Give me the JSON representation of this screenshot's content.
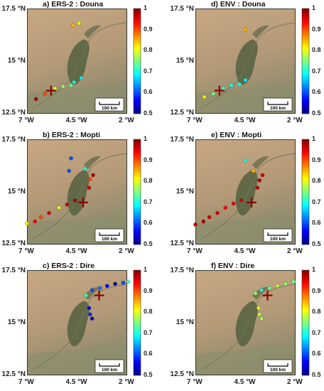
{
  "colorbar": {
    "ticks": [
      "1",
      "0.9",
      "0.8",
      "0.7",
      "0.6",
      "0.5"
    ],
    "values": [
      1,
      0.9,
      0.8,
      0.7,
      0.6,
      0.5
    ],
    "min": 0.5,
    "max": 1,
    "colors": [
      "#00007f",
      "#0000ff",
      "#007fff",
      "#00ffff",
      "#7fff7f",
      "#ffff00",
      "#ff7f00",
      "#ff0000",
      "#7f0000"
    ]
  },
  "axes": {
    "lat_labels": [
      "17.5 °N",
      "15 °N",
      "12.5 °N"
    ],
    "lon_labels": [
      "7 °W",
      "4.5 °W",
      "2 °W"
    ]
  },
  "scalebar": {
    "label": "100 km"
  },
  "colors": {
    "station_cross": "#8b0000",
    "outline": "#333333"
  },
  "chart_data": [
    {
      "type": "scatter",
      "title": "a) ERS-2 : Douna",
      "station": [
        -5.8,
        13.6
      ],
      "points": [
        [
          -6.55,
          13.2,
          0.98
        ],
        [
          -6.1,
          13.45,
          0.9
        ],
        [
          -5.6,
          13.7,
          0.8
        ],
        [
          -5.2,
          13.8,
          0.76
        ],
        [
          -4.8,
          13.85,
          0.74
        ],
        [
          -4.65,
          14.0,
          0.7
        ],
        [
          -4.3,
          14.2,
          0.68
        ],
        [
          -4.7,
          16.7,
          0.85
        ],
        [
          -4.4,
          16.8,
          0.8
        ]
      ]
    },
    {
      "type": "scatter",
      "title": "d) ENV : Douna",
      "station": [
        -5.8,
        13.6
      ],
      "points": [
        [
          -6.55,
          13.3,
          0.82
        ],
        [
          -6.1,
          13.45,
          0.75
        ],
        [
          -5.6,
          13.7,
          0.72
        ],
        [
          -5.2,
          13.85,
          0.7
        ],
        [
          -4.8,
          13.9,
          0.7
        ],
        [
          -4.5,
          14.1,
          0.68
        ],
        [
          -4.5,
          16.5,
          0.85
        ]
      ]
    },
    {
      "type": "scatter",
      "title": "b) ERS-2 : Mopti",
      "station": [
        -4.2,
        14.5
      ],
      "points": [
        [
          -7.0,
          13.5,
          0.82
        ],
        [
          -6.6,
          13.6,
          0.94
        ],
        [
          -6.3,
          13.8,
          0.9
        ],
        [
          -5.9,
          14.0,
          0.96
        ],
        [
          -5.4,
          14.25,
          0.8
        ],
        [
          -5.0,
          14.4,
          0.96
        ],
        [
          -4.6,
          14.6,
          0.98
        ],
        [
          -3.9,
          15.2,
          0.96
        ],
        [
          -3.85,
          15.6,
          0.9
        ],
        [
          -3.7,
          15.8,
          0.98
        ],
        [
          -4.1,
          16.1,
          0.7
        ],
        [
          -4.9,
          16.0,
          0.6
        ],
        [
          -4.8,
          16.6,
          0.6
        ]
      ]
    },
    {
      "type": "scatter",
      "title": "e) ENV : Mopti",
      "station": [
        -4.2,
        14.5
      ],
      "points": [
        [
          -7.0,
          13.45,
          0.96
        ],
        [
          -6.6,
          13.6,
          0.98
        ],
        [
          -6.3,
          13.8,
          0.96
        ],
        [
          -5.9,
          14.0,
          0.96
        ],
        [
          -5.5,
          14.25,
          0.94
        ],
        [
          -5.1,
          14.45,
          0.95
        ],
        [
          -4.7,
          14.6,
          0.96
        ],
        [
          -3.9,
          15.2,
          0.97
        ],
        [
          -3.8,
          15.55,
          0.98
        ],
        [
          -3.65,
          15.8,
          0.96
        ],
        [
          -4.1,
          16.0,
          0.85
        ],
        [
          -4.5,
          16.5,
          0.7
        ]
      ]
    },
    {
      "type": "scatter",
      "title": "c) ERS-2 : Dire",
      "station": [
        -3.4,
        16.3
      ],
      "points": [
        [
          -4.05,
          16.3,
          0.72
        ],
        [
          -3.75,
          16.55,
          0.6
        ],
        [
          -3.35,
          16.65,
          0.62
        ],
        [
          -3.0,
          16.75,
          0.56
        ],
        [
          -2.6,
          16.85,
          0.5
        ],
        [
          -2.2,
          16.9,
          0.6
        ],
        [
          -1.95,
          16.95,
          0.72
        ],
        [
          -3.9,
          15.7,
          0.55
        ],
        [
          -3.85,
          15.4,
          0.58
        ],
        [
          -3.75,
          15.2,
          0.52
        ]
      ]
    },
    {
      "type": "scatter",
      "title": "f) ENV : Dire",
      "station": [
        -3.4,
        16.3
      ],
      "points": [
        [
          -4.0,
          16.4,
          0.76
        ],
        [
          -3.7,
          16.55,
          0.7
        ],
        [
          -3.3,
          16.65,
          0.74
        ],
        [
          -2.9,
          16.75,
          0.78
        ],
        [
          -2.5,
          16.85,
          0.76
        ],
        [
          -2.1,
          16.95,
          0.75
        ],
        [
          -3.85,
          15.7,
          0.8
        ],
        [
          -3.8,
          15.4,
          0.78
        ],
        [
          -3.7,
          15.2,
          0.76
        ]
      ]
    }
  ]
}
